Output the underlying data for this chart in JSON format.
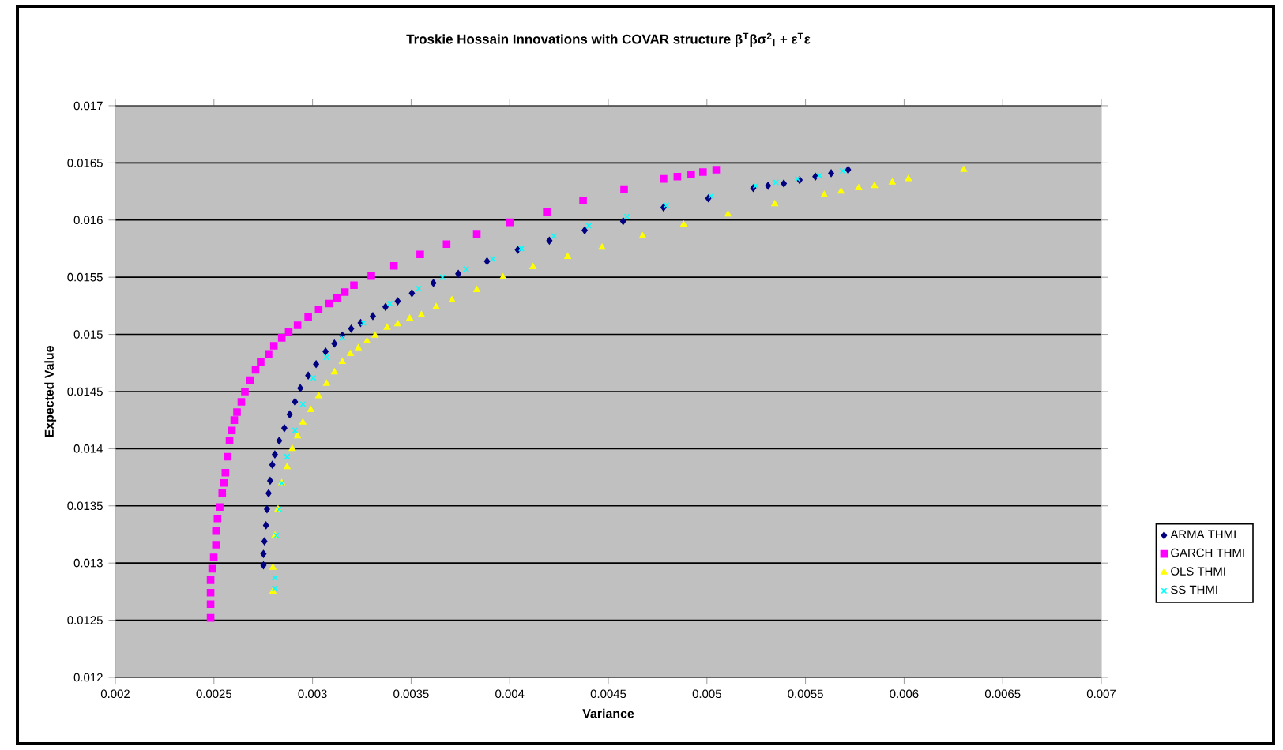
{
  "chart_data": {
    "type": "scatter",
    "title": "Troskie Hossain Innovations with COVAR structure β$^{T}$βσ$^{2}$$_{I}$ + ε$^{T}$ε",
    "xlabel": "Variance",
    "ylabel": "Expected Value",
    "xlim": [
      0.002,
      0.007
    ],
    "ylim": [
      0.012,
      0.017
    ],
    "xticks": [
      0.002,
      0.0025,
      0.003,
      0.0035,
      0.004,
      0.0045,
      0.005,
      0.0055,
      0.006,
      0.0065,
      0.007
    ],
    "yticks": [
      0.012,
      0.0125,
      0.013,
      0.0135,
      0.014,
      0.0145,
      0.015,
      0.0155,
      0.016,
      0.0165,
      0.017
    ],
    "grid": "y",
    "legend": "right",
    "series": [
      {
        "name": "ARMA THMI",
        "color": "#000080",
        "marker": "diamond",
        "x": [
          0.002751,
          0.002751,
          0.002756,
          0.002764,
          0.002769,
          0.002777,
          0.002785,
          0.002796,
          0.002809,
          0.002831,
          0.002857,
          0.002884,
          0.002911,
          0.002938,
          0.002978,
          0.003018,
          0.003066,
          0.003111,
          0.003151,
          0.003196,
          0.003244,
          0.003306,
          0.00337,
          0.003432,
          0.003504,
          0.003613,
          0.003739,
          0.003885,
          0.004041,
          0.004201,
          0.00438,
          0.004575,
          0.00478,
          0.005007,
          0.005235,
          0.00531,
          0.00539,
          0.00547,
          0.00555,
          0.00563,
          0.005716
        ],
        "values": [
          0.01298,
          0.01308,
          0.01319,
          0.01333,
          0.01347,
          0.01361,
          0.01372,
          0.01386,
          0.01395,
          0.01407,
          0.01418,
          0.0143,
          0.01441,
          0.01453,
          0.01464,
          0.01474,
          0.01485,
          0.01492,
          0.01499,
          0.01505,
          0.0151,
          0.01516,
          0.01524,
          0.01529,
          0.01536,
          0.01545,
          0.01553,
          0.01564,
          0.01574,
          0.01582,
          0.01591,
          0.01599,
          0.01611,
          0.01619,
          0.01628,
          0.0163,
          0.01632,
          0.01635,
          0.01638,
          0.01641,
          0.01644
        ]
      },
      {
        "name": "GARCH THMI",
        "color": "#ff00ff",
        "marker": "square",
        "x": [
          0.002483,
          0.002483,
          0.002483,
          0.002483,
          0.002491,
          0.002499,
          0.00251,
          0.00251,
          0.002518,
          0.002529,
          0.002542,
          0.00255,
          0.002558,
          0.002569,
          0.002579,
          0.002591,
          0.002603,
          0.002617,
          0.002639,
          0.002657,
          0.002684,
          0.002711,
          0.002737,
          0.002777,
          0.002804,
          0.002844,
          0.002879,
          0.002924,
          0.002978,
          0.003031,
          0.003084,
          0.003124,
          0.003164,
          0.00321,
          0.003298,
          0.003413,
          0.003546,
          0.00368,
          0.003833,
          0.004001,
          0.004188,
          0.004372,
          0.00458,
          0.00478,
          0.00485,
          0.00492,
          0.00498,
          0.005047
        ],
        "values": [
          0.01252,
          0.01264,
          0.01274,
          0.01285,
          0.01295,
          0.01305,
          0.01316,
          0.01328,
          0.01339,
          0.01349,
          0.01361,
          0.0137,
          0.01379,
          0.01393,
          0.01407,
          0.01416,
          0.01425,
          0.01432,
          0.01441,
          0.0145,
          0.0146,
          0.01469,
          0.01476,
          0.01483,
          0.0149,
          0.01497,
          0.01502,
          0.01508,
          0.01515,
          0.01522,
          0.01527,
          0.01532,
          0.01537,
          0.01543,
          0.01551,
          0.0156,
          0.0157,
          0.01579,
          0.01588,
          0.01598,
          0.01607,
          0.01617,
          0.01627,
          0.01636,
          0.01638,
          0.0164,
          0.01642,
          0.01644
        ]
      },
      {
        "name": "OLS THMI",
        "color": "#ffff00",
        "marker": "triangle",
        "x": [
          0.002799,
          0.002799,
          0.002809,
          0.002825,
          0.002844,
          0.002871,
          0.002897,
          0.002924,
          0.002951,
          0.002991,
          0.003031,
          0.003071,
          0.003111,
          0.003151,
          0.003192,
          0.003232,
          0.003276,
          0.003317,
          0.003378,
          0.003432,
          0.003493,
          0.003552,
          0.003627,
          0.003707,
          0.003833,
          0.003966,
          0.004118,
          0.004294,
          0.004468,
          0.004674,
          0.004882,
          0.005107,
          0.005344,
          0.005595,
          0.00568,
          0.00577,
          0.00585,
          0.00594,
          0.006022,
          0.006303
        ],
        "values": [
          0.01275,
          0.01296,
          0.01324,
          0.01347,
          0.0137,
          0.01384,
          0.014,
          0.01411,
          0.01423,
          0.01434,
          0.01446,
          0.01457,
          0.01467,
          0.01476,
          0.01483,
          0.01488,
          0.01494,
          0.01499,
          0.01506,
          0.01509,
          0.01514,
          0.01517,
          0.01524,
          0.0153,
          0.01539,
          0.0155,
          0.01559,
          0.01568,
          0.01576,
          0.01586,
          0.01596,
          0.01605,
          0.01614,
          0.01622,
          0.01625,
          0.01628,
          0.0163,
          0.01633,
          0.01636,
          0.01644
        ]
      },
      {
        "name": "SS THMI",
        "color": "#00ffff",
        "marker": "cross",
        "x": [
          0.002809,
          0.002809,
          0.002817,
          0.002831,
          0.002844,
          0.002871,
          0.002911,
          0.002951,
          0.003004,
          0.003071,
          0.003151,
          0.003258,
          0.003392,
          0.003538,
          0.003659,
          0.003779,
          0.003913,
          0.004059,
          0.004225,
          0.004401,
          0.004594,
          0.004794,
          0.005021,
          0.005248,
          0.00535,
          0.00546,
          0.00557,
          0.005689
        ],
        "values": [
          0.01278,
          0.01287,
          0.01324,
          0.01347,
          0.0137,
          0.01393,
          0.01416,
          0.01439,
          0.01462,
          0.0148,
          0.01497,
          0.0151,
          0.01527,
          0.0154,
          0.0155,
          0.01557,
          0.01566,
          0.01575,
          0.01586,
          0.01595,
          0.01603,
          0.01613,
          0.01621,
          0.0163,
          0.01633,
          0.01636,
          0.01639,
          0.01643
        ]
      }
    ]
  }
}
